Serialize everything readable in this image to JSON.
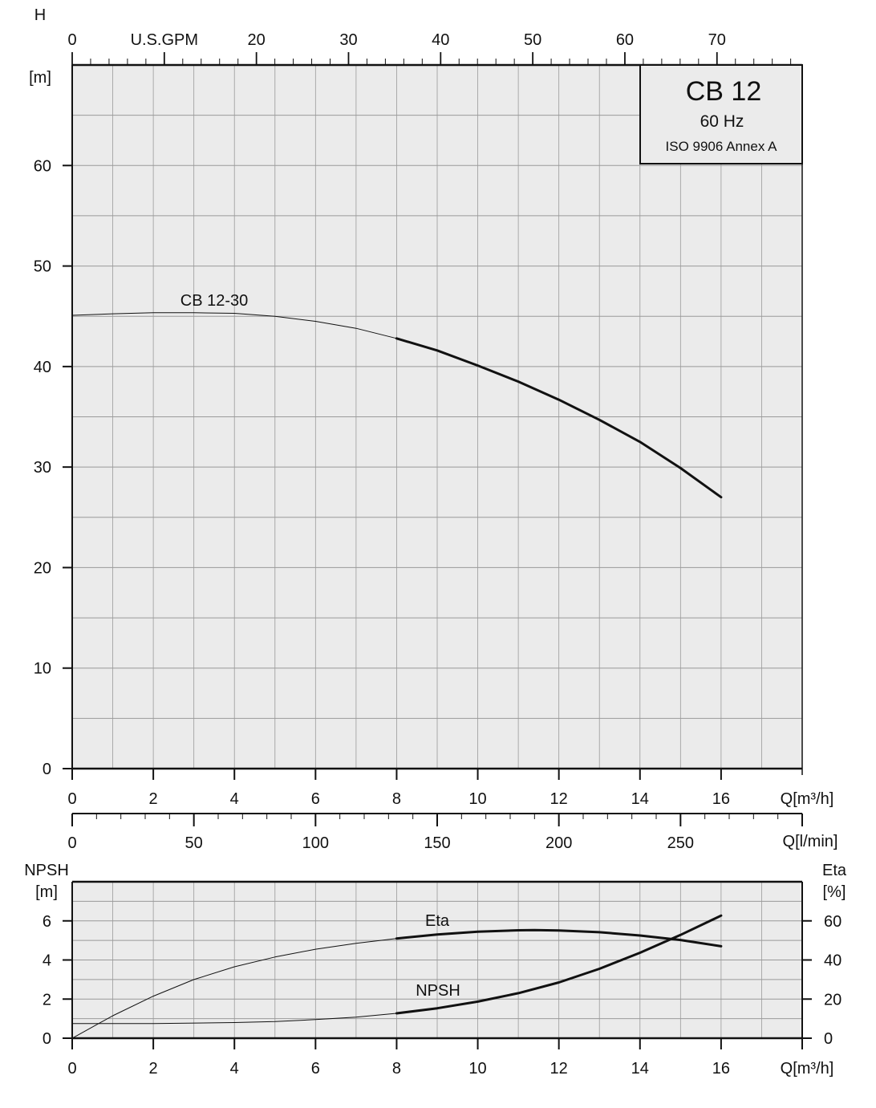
{
  "chart_data": [
    {
      "type": "line",
      "title": "CB 12",
      "subtitle": "60 Hz",
      "note": "ISO 9906 Annex A",
      "ylabel": "H",
      "yunit": "[m]",
      "xlabel": "Q[m³/h]",
      "xlabel_top": "U.S.GPM",
      "xlabel_lmin": "Q[l/min]",
      "xlim": [
        0,
        18
      ],
      "ylim": [
        0,
        70
      ],
      "x_ticks": [
        0,
        2,
        4,
        6,
        8,
        10,
        12,
        14,
        16
      ],
      "y_ticks": [
        0,
        10,
        20,
        30,
        40,
        50,
        60
      ],
      "gpm_ticks": [
        0,
        20,
        30,
        40,
        50,
        60,
        70
      ],
      "lmin_ticks": [
        0,
        50,
        100,
        150,
        200,
        250
      ],
      "grid": true,
      "background": "#ebebeb",
      "series": [
        {
          "name": "CB 12-30",
          "x": [
            0,
            1,
            2,
            3,
            4,
            5,
            6,
            7,
            8,
            9,
            10,
            11,
            12,
            13,
            14,
            15,
            16
          ],
          "y": [
            45.1,
            45.25,
            45.35,
            45.35,
            45.3,
            45.0,
            44.5,
            43.8,
            42.8,
            41.6,
            40.1,
            38.5,
            36.7,
            34.7,
            32.5,
            29.9,
            27.0
          ],
          "bold_from_x": 8
        }
      ]
    },
    {
      "type": "line",
      "ylabel": "NPSH",
      "yunit": "[m]",
      "y2label": "Eta",
      "y2unit": "[%]",
      "xlabel": "Q[m³/h]",
      "xlim": [
        0,
        18
      ],
      "ylim": [
        0,
        8
      ],
      "y2lim": [
        0,
        80
      ],
      "x_ticks": [
        0,
        2,
        4,
        6,
        8,
        10,
        12,
        14,
        16
      ],
      "y_ticks": [
        0,
        2,
        4,
        6
      ],
      "y2_ticks": [
        0,
        20,
        40,
        60
      ],
      "grid": true,
      "series": [
        {
          "name": "Eta",
          "axis": "right",
          "x": [
            0,
            1,
            2,
            3,
            4,
            5,
            6,
            7,
            8,
            9,
            10,
            11,
            11.4,
            12,
            13,
            14,
            15,
            16
          ],
          "y": [
            0,
            11.5,
            21.5,
            30,
            36.5,
            41.5,
            45.5,
            48.5,
            51,
            53,
            54.5,
            55.2,
            55.3,
            55.1,
            54.2,
            52.5,
            50.2,
            47
          ],
          "bold_from_x": 8
        },
        {
          "name": "NPSH",
          "axis": "left",
          "x": [
            0,
            2,
            4,
            5,
            6,
            7,
            8,
            9,
            10,
            11,
            12,
            13,
            14,
            15,
            16
          ],
          "y": [
            0.75,
            0.75,
            0.8,
            0.85,
            0.95,
            1.08,
            1.27,
            1.53,
            1.87,
            2.3,
            2.85,
            3.55,
            4.37,
            5.28,
            6.27
          ],
          "bold_from_x": 8
        }
      ]
    }
  ]
}
